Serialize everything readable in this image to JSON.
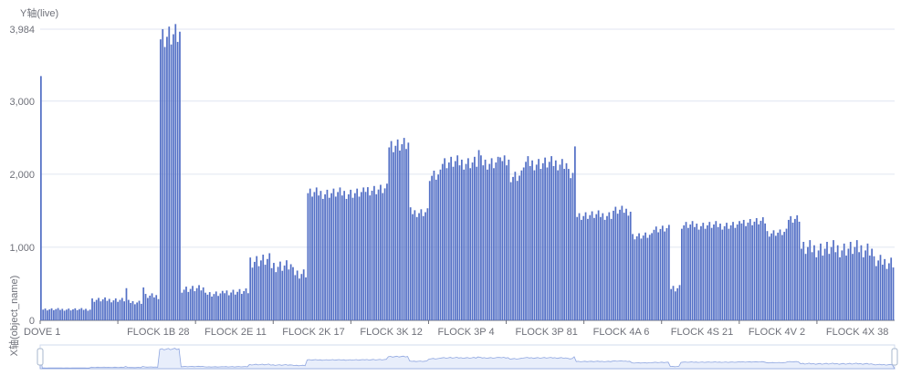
{
  "chart_data": {
    "type": "bar",
    "ylabel": "Y轴(live)",
    "xlabel": "X轴(object_name)",
    "ylim": [
      0,
      3984
    ],
    "y_ticks": [
      "0",
      "1,000",
      "2,000",
      "3,000",
      "3,984"
    ],
    "y_tick_values": [
      0,
      1000,
      2000,
      3000,
      3984
    ],
    "x_tick_labels": [
      "DOVE 1",
      "FLOCK 1B 28",
      "FLOCK 2E 11",
      "FLOCK 2K 17",
      "FLOCK 3K 12",
      "FLOCK 3P 4",
      "FLOCK 3P 81",
      "FLOCK 4A 6",
      "FLOCK 4S 21",
      "FLOCK 4V 2",
      "FLOCK 4X 38"
    ],
    "bar_count": 400,
    "segments": [
      {
        "from": 0,
        "to": 1,
        "value": 3500
      },
      {
        "from": 1,
        "to": 24,
        "value": 150
      },
      {
        "from": 24,
        "to": 40,
        "value": 280
      },
      {
        "from": 40,
        "to": 41,
        "value": 430
      },
      {
        "from": 41,
        "to": 48,
        "value": 250
      },
      {
        "from": 48,
        "to": 49,
        "value": 450
      },
      {
        "from": 49,
        "to": 56,
        "value": 330
      },
      {
        "from": 56,
        "to": 66,
        "value": 3880
      },
      {
        "from": 66,
        "to": 78,
        "value": 430
      },
      {
        "from": 78,
        "to": 86,
        "value": 360
      },
      {
        "from": 86,
        "to": 98,
        "value": 390
      },
      {
        "from": 98,
        "to": 108,
        "value": 820
      },
      {
        "from": 108,
        "to": 118,
        "value": 750
      },
      {
        "from": 118,
        "to": 125,
        "value": 650
      },
      {
        "from": 125,
        "to": 152,
        "value": 1740
      },
      {
        "from": 152,
        "to": 163,
        "value": 1790
      },
      {
        "from": 163,
        "to": 173,
        "value": 2410
      },
      {
        "from": 173,
        "to": 182,
        "value": 1480
      },
      {
        "from": 182,
        "to": 187,
        "value": 1960
      },
      {
        "from": 187,
        "to": 220,
        "value": 2160
      },
      {
        "from": 220,
        "to": 226,
        "value": 1980
      },
      {
        "from": 226,
        "to": 247,
        "value": 2150
      },
      {
        "from": 247,
        "to": 250,
        "value": 2000
      },
      {
        "from": 250,
        "to": 268,
        "value": 1440
      },
      {
        "from": 268,
        "to": 277,
        "value": 1500
      },
      {
        "from": 277,
        "to": 286,
        "value": 1150
      },
      {
        "from": 286,
        "to": 295,
        "value": 1250
      },
      {
        "from": 295,
        "to": 300,
        "value": 450
      },
      {
        "from": 300,
        "to": 328,
        "value": 1300
      },
      {
        "from": 328,
        "to": 340,
        "value": 1350
      },
      {
        "from": 340,
        "to": 350,
        "value": 1200
      },
      {
        "from": 350,
        "to": 356,
        "value": 1400
      },
      {
        "from": 356,
        "to": 390,
        "value": 980
      },
      {
        "from": 390,
        "to": 400,
        "value": 800
      }
    ],
    "spikes": [
      {
        "index": 250,
        "value": 2380
      },
      {
        "index": 205,
        "value": 2330
      },
      {
        "index": 215,
        "value": 2230
      }
    ],
    "bar_color": "#5470c6",
    "grid": true,
    "legend": "none"
  },
  "colors": {
    "bar": "#5470c6",
    "axis": "#6e7079",
    "grid": "#e0e6f1",
    "zoom_fill": "#e8eefb",
    "zoom_line": "#8fa6e0",
    "zoom_border": "#d2dbee"
  }
}
